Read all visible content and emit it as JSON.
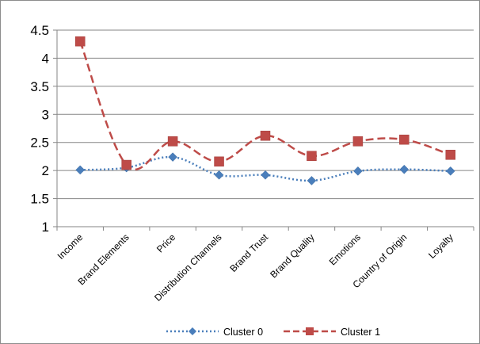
{
  "chart_data": {
    "type": "line",
    "categories": [
      "Income",
      "Brand Elements",
      "Price",
      "Distribution Channels",
      "Brand Trust",
      "Brand Quality",
      "Emotions",
      "Country of Origin",
      "Loyalty"
    ],
    "ylim": [
      1,
      4.5
    ],
    "yticks": [
      "1",
      "1.5",
      "2",
      "2.5",
      "3",
      "3.5",
      "4",
      "4.5"
    ],
    "grid": true,
    "legend": "bottom",
    "series": [
      {
        "name": "Cluster 0",
        "values": [
          2.01,
          2.05,
          2.24,
          1.92,
          1.92,
          1.82,
          1.99,
          2.02,
          1.99
        ],
        "color": "#4a7ebb",
        "marker": "diamond",
        "dash": "dotted"
      },
      {
        "name": "Cluster 1",
        "values": [
          4.3,
          2.1,
          2.52,
          2.16,
          2.62,
          2.26,
          2.52,
          2.55,
          2.28
        ],
        "color": "#be4b48",
        "marker": "square",
        "dash": "dashed"
      }
    ]
  }
}
